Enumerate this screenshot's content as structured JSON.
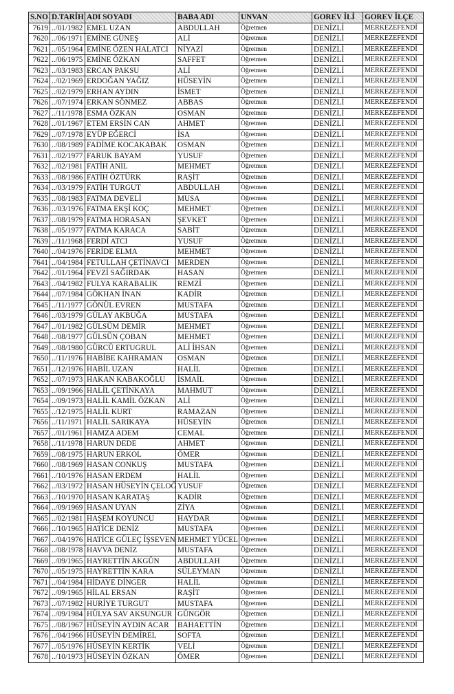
{
  "table": {
    "headers": [
      "S.NO",
      "D.TARİHİ",
      "ADI SOYADI",
      "BABA ADI",
      "UNVAN",
      "GOREV İLİ",
      "GOREV İLÇE"
    ],
    "rows": [
      [
        "7619",
        "../01/1982",
        "EMEL UZAN",
        "ABDULLAH",
        "Öğretmen",
        "DENİZLİ",
        "MERKEZEFENDİ"
      ],
      [
        "7620",
        "../06/1971",
        "EMİNE GÜNEŞ",
        "ALİ",
        "Öğretmen",
        "DENİZLİ",
        "MERKEZEFENDİ"
      ],
      [
        "7621",
        "../05/1964",
        "EMİNE ÖZEN HALATCI",
        "NİYAZİ",
        "Öğretmen",
        "DENİZLİ",
        "MERKEZEFENDİ"
      ],
      [
        "7622",
        "../06/1975",
        "EMİNE ÖZKAN",
        "SAFFET",
        "Öğretmen",
        "DENİZLİ",
        "MERKEZEFENDİ"
      ],
      [
        "7623",
        "../03/1983",
        "ERCAN PAKSU",
        "ALİ",
        "Öğretmen",
        "DENİZLİ",
        "MERKEZEFENDİ"
      ],
      [
        "7624",
        "../02/1969",
        "ERDOĞAN YAĞIZ",
        "HÜSEYİN",
        "Öğretmen",
        "DENİZLİ",
        "MERKEZEFENDİ"
      ],
      [
        "7625",
        "../02/1979",
        "ERHAN AYDIN",
        "İSMET",
        "Öğretmen",
        "DENİZLİ",
        "MERKEZEFENDİ"
      ],
      [
        "7626",
        "../07/1974",
        "ERKAN SÖNMEZ",
        "ABBAS",
        "Öğretmen",
        "DENİZLİ",
        "MERKEZEFENDİ"
      ],
      [
        "7627",
        "../11/1978",
        "ESMA ÖZKAN",
        "OSMAN",
        "Öğretmen",
        "DENİZLİ",
        "MERKEZEFENDİ"
      ],
      [
        "7628",
        "../01/1967",
        "ETEM ERSİN CAN",
        "AHMET",
        "Öğretmen",
        "DENİZLİ",
        "MERKEZEFENDİ"
      ],
      [
        "7629",
        "../07/1978",
        "EYÜP EĞERCİ",
        "İSA",
        "Öğretmen",
        "DENİZLİ",
        "MERKEZEFENDİ"
      ],
      [
        "7630",
        "../08/1989",
        "FADİME KOCAKABAK",
        "OSMAN",
        "Öğretmen",
        "DENİZLİ",
        "MERKEZEFENDİ"
      ],
      [
        "7631",
        "../02/1977",
        "FARUK BAYAM",
        "YUSUF",
        "Öğretmen",
        "DENİZLİ",
        "MERKEZEFENDİ"
      ],
      [
        "7632",
        "../02/1981",
        "FATİH ANIL",
        "MEHMET",
        "Öğretmen",
        "DENİZLİ",
        "MERKEZEFENDİ"
      ],
      [
        "7633",
        "../08/1986",
        "FATİH ÖZTÜRK",
        "RAŞİT",
        "Öğretmen",
        "DENİZLİ",
        "MERKEZEFENDİ"
      ],
      [
        "7634",
        "../03/1979",
        "FATİH TURGUT",
        "ABDULLAH",
        "Öğretmen",
        "DENİZLİ",
        "MERKEZEFENDİ"
      ],
      [
        "7635",
        "../08/1983",
        "FATMA DEVELİ",
        "MUSA",
        "Öğretmen",
        "DENİZLİ",
        "MERKEZEFENDİ"
      ],
      [
        "7636",
        "../03/1976",
        "FATMA EKŞİ KOÇ",
        "MEHMET",
        "Öğretmen",
        "DENİZLİ",
        "MERKEZEFENDİ"
      ],
      [
        "7637",
        "../08/1979",
        "FATMA HORASAN",
        "ŞEVKET",
        "Öğretmen",
        "DENİZLİ",
        "MERKEZEFENDİ"
      ],
      [
        "7638",
        "../05/1977",
        "FATMA KARACA",
        "SABİT",
        "Öğretmen",
        "DENİZLİ",
        "MERKEZEFENDİ"
      ],
      [
        "7639",
        "../11/1968",
        "FERDİ ATCI",
        "YUSUF",
        "Öğretmen",
        "DENİZLİ",
        "MERKEZEFENDİ"
      ],
      [
        "7640",
        "../04/1976",
        "FERİDE ELMA",
        "MEHMET",
        "Öğretmen",
        "DENİZLİ",
        "MERKEZEFENDİ"
      ],
      [
        "7641",
        "../04/1984",
        "FETULLAH ÇETİNAVCI",
        "MERDEN",
        "Öğretmen",
        "DENİZLİ",
        "MERKEZEFENDİ"
      ],
      [
        "7642",
        "../01/1964",
        "FEVZİ SAĞIRDAK",
        "HASAN",
        "Öğretmen",
        "DENİZLİ",
        "MERKEZEFENDİ"
      ],
      [
        "7643",
        "../04/1982",
        "FULYA KARABALIK",
        "REMZİ",
        "Öğretmen",
        "DENİZLİ",
        "MERKEZEFENDİ"
      ],
      [
        "7644",
        "../07/1984",
        "GÖKHAN İNAN",
        "KADİR",
        "Öğretmen",
        "DENİZLİ",
        "MERKEZEFENDİ"
      ],
      [
        "7645",
        "../11/1977",
        "GÖNÜL EVREN",
        "MUSTAFA",
        "Öğretmen",
        "DENİZLİ",
        "MERKEZEFENDİ"
      ],
      [
        "7646",
        "../03/1979",
        "GÜLAY AKBUĞA",
        "MUSTAFA",
        "Öğretmen",
        "DENİZLİ",
        "MERKEZEFENDİ"
      ],
      [
        "7647",
        "../01/1982",
        "GÜLSÜM DEMİR",
        "MEHMET",
        "Öğretmen",
        "DENİZLİ",
        "MERKEZEFENDİ"
      ],
      [
        "7648",
        "../08/1977",
        "GÜLSÜN ÇOBAN",
        "MEHMET",
        "Öğretmen",
        "DENİZLİ",
        "MERKEZEFENDİ"
      ],
      [
        "7649",
        "../08/1980",
        "GÜRCÜ ERTUGRUL",
        "ALİ İHSAN",
        "Öğretmen",
        "DENİZLİ",
        "MERKEZEFENDİ"
      ],
      [
        "7650",
        "../11/1976",
        "HABİBE KAHRAMAN",
        "OSMAN",
        "Öğretmen",
        "DENİZLİ",
        "MERKEZEFENDİ"
      ],
      [
        "7651",
        "../12/1976",
        "HABİL UZAN",
        "HALİL",
        "Öğretmen",
        "DENİZLİ",
        "MERKEZEFENDİ"
      ],
      [
        "7652",
        "../07/1973",
        "HAKAN KABAKOĞLU",
        "İSMAİL",
        "Öğretmen",
        "DENİZLİ",
        "MERKEZEFENDİ"
      ],
      [
        "7653",
        "../09/1966",
        "HALİL ÇETİNKAYA",
        "MAHMUT",
        "Öğretmen",
        "DENİZLİ",
        "MERKEZEFENDİ"
      ],
      [
        "7654",
        "../09/1973",
        "HALİL KAMİL ÖZKAN",
        "ALİ",
        "Öğretmen",
        "DENİZLİ",
        "MERKEZEFENDİ"
      ],
      [
        "7655",
        "../12/1975",
        "HALİL KURT",
        "RAMAZAN",
        "Öğretmen",
        "DENİZLİ",
        "MERKEZEFENDİ"
      ],
      [
        "7656",
        "../11/1971",
        "HALİL SARIKAYA",
        "HÜSEYİN",
        "Öğretmen",
        "DENİZLİ",
        "MERKEZEFENDİ"
      ],
      [
        "7657",
        "../01/1961",
        "HAMZA ADEM",
        "CEMAL",
        "Öğretmen",
        "DENİZLİ",
        "MERKEZEFENDİ"
      ],
      [
        "7658",
        "../11/1978",
        "HARUN DEDE",
        "AHMET",
        "Öğretmen",
        "DENİZLİ",
        "MERKEZEFENDİ"
      ],
      [
        "7659",
        "../08/1975",
        "HARUN ERKOL",
        "ÖMER",
        "Öğretmen",
        "DENİZLİ",
        "MERKEZEFENDİ"
      ],
      [
        "7660",
        "../08/1969",
        "HASAN CONKUŞ",
        "MUSTAFA",
        "Öğretmen",
        "DENİZLİ",
        "MERKEZEFENDİ"
      ],
      [
        "7661",
        "../10/1976",
        "HASAN ERDEM",
        "HALİL",
        "Öğretmen",
        "DENİZLİ",
        "MERKEZEFENDİ"
      ],
      [
        "7662",
        "../03/1972",
        "HASAN HÜSEYİN ÇELOĞLU",
        "YUSUF",
        "Öğretmen",
        "DENİZLİ",
        "MERKEZEFENDİ"
      ],
      [
        "7663",
        "../10/1970",
        "HASAN KARATAŞ",
        "KADİR",
        "Öğretmen",
        "DENİZLİ",
        "MERKEZEFENDİ"
      ],
      [
        "7664",
        "../09/1969",
        "HASAN UYAN",
        "ZİYA",
        "Öğretmen",
        "DENİZLİ",
        "MERKEZEFENDİ"
      ],
      [
        "7665",
        "../02/1981",
        "HAŞEM KOYUNCU",
        "HAYDAR",
        "Öğretmen",
        "DENİZLİ",
        "MERKEZEFENDİ"
      ],
      [
        "7666",
        "../10/1965",
        "HATİCE DENİZ",
        "MUSTAFA",
        "Öğretmen",
        "DENİZLİ",
        "MERKEZEFENDİ"
      ],
      [
        "7667",
        "../04/1976",
        "HATİCE GÜLEÇ İŞSEVEN",
        "MEHMET YÜCEL",
        "Öğretmen",
        "DENİZLİ",
        "MERKEZEFENDİ"
      ],
      [
        "7668",
        "../08/1978",
        "HAVVA DENİZ",
        "MUSTAFA",
        "Öğretmen",
        "DENİZLİ",
        "MERKEZEFENDİ"
      ],
      [
        "7669",
        "../09/1965",
        "HAYRETTİN AKGÜN",
        "ABDULLAH",
        "Öğretmen",
        "DENİZLİ",
        "MERKEZEFENDİ"
      ],
      [
        "7670",
        "../05/1975",
        "HAYRETTİN KARA",
        "SÜLEYMAN",
        "Öğretmen",
        "DENİZLİ",
        "MERKEZEFENDİ"
      ],
      [
        "7671",
        "../04/1984",
        "HİDAYE DİNGER",
        "HALİL",
        "Öğretmen",
        "DENİZLİ",
        "MERKEZEFENDİ"
      ],
      [
        "7672",
        "../09/1965",
        "HİLAL ERSAN",
        "RAŞİT",
        "Öğretmen",
        "DENİZLİ",
        "MERKEZEFENDİ"
      ],
      [
        "7673",
        "../07/1982",
        "HURİYE TURGUT",
        "MUSTAFA",
        "Öğretmen",
        "DENİZLİ",
        "MERKEZEFENDİ"
      ],
      [
        "7674",
        "../09/1984",
        "HÜLYA SAV AKSUNGUR",
        "GÜNGÖR",
        "Öğretmen",
        "DENİZLİ",
        "MERKEZEFENDİ"
      ],
      [
        "7675",
        "../08/1967",
        "HÜSEYİN AYDIN ACAR",
        "BAHAETTİN",
        "Öğretmen",
        "DENİZLİ",
        "MERKEZEFENDİ"
      ],
      [
        "7676",
        "../04/1966",
        "HÜSEYİN DEMİREL",
        "SOFTA",
        "Öğretmen",
        "DENİZLİ",
        "MERKEZEFENDİ"
      ],
      [
        "7677",
        "../05/1976",
        "HÜSEYİN KERTİK",
        "VELİ",
        "Öğretmen",
        "DENİZLİ",
        "MERKEZEFENDİ"
      ],
      [
        "7678",
        "../10/1973",
        "HÜSEYİN ÖZKAN",
        "ÖMER",
        "Öğretmen",
        "DENİZLİ",
        "MERKEZEFENDİ"
      ]
    ]
  }
}
